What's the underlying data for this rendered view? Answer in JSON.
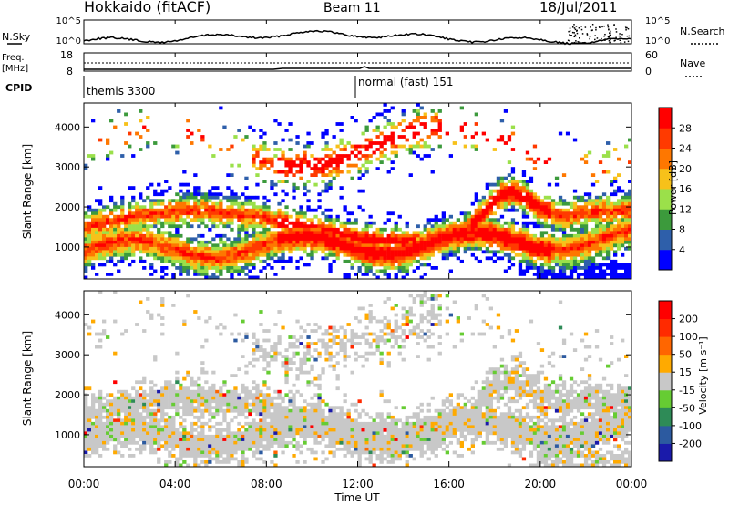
{
  "header": {
    "title": "Hokkaido (fitACF)",
    "beam": "Beam 11",
    "date": "18/Jul/2011"
  },
  "top_panel": {
    "left_label": "N.Sky",
    "left_ticks": [
      "10^5",
      "10^0"
    ],
    "right_ticks": [
      "10^5",
      "10^0"
    ],
    "right_label": "N.Search"
  },
  "freq_panel": {
    "label_line1": "Freq.",
    "label_line2": "[MHz]",
    "left_ticks": [
      "18",
      "8"
    ],
    "right_ticks": [
      "60",
      "0"
    ],
    "right_label": "Nave"
  },
  "cpid_panel": {
    "label": "CPID",
    "segments": [
      "themis 3300",
      "normal (fast) 151"
    ]
  },
  "chart_data": [
    {
      "type": "heatmap",
      "name": "power",
      "ylabel": "Slant Range [km]",
      "yticks": [
        "4000",
        "3000",
        "2000",
        "1000"
      ],
      "ylim": [
        200,
        4600
      ],
      "colorbar_label": "Power [dB]",
      "colorbar_ticks": [
        "28",
        "24",
        "20",
        "16",
        "12",
        "8",
        "4"
      ],
      "colors": [
        "#0000ff",
        "#2e5faa",
        "#3c9a3c",
        "#9be04a",
        "#f7c11a",
        "#fe7700",
        "#ff3a00",
        "#ff0000"
      ]
    },
    {
      "type": "heatmap",
      "name": "velocity",
      "ylabel": "Slant Range [km]",
      "yticks": [
        "4000",
        "3000",
        "2000",
        "1000"
      ],
      "ylim": [
        200,
        4600
      ],
      "colorbar_label": "Velocity [m s⁻¹]",
      "colorbar_ticks": [
        "200",
        "100",
        "50",
        "15",
        "-15",
        "-50",
        "-100",
        "-200"
      ],
      "colors": [
        "#1a1aaa",
        "#2c5aa0",
        "#2e8b57",
        "#66cc33",
        "#c8c8c8",
        "#ffaa00",
        "#ff6600",
        "#ff2a00",
        "#ff0000"
      ]
    }
  ],
  "x_axis": {
    "ticks": [
      "00:00",
      "04:00",
      "08:00",
      "12:00",
      "16:00",
      "20:00",
      "00:00"
    ],
    "label": "Time UT"
  }
}
